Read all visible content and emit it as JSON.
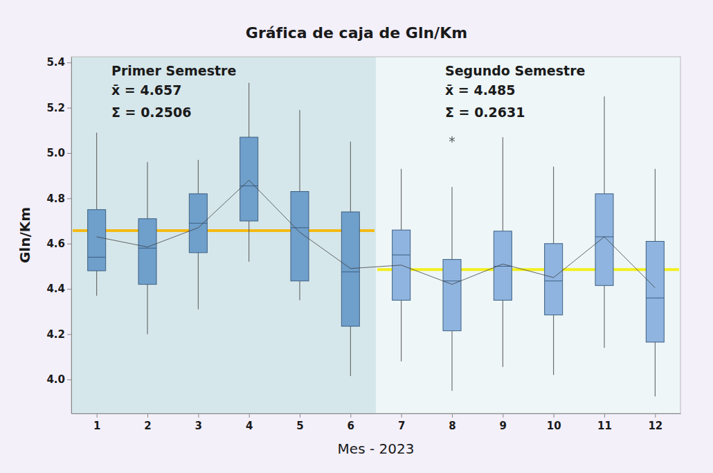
{
  "chart_data": {
    "type": "box",
    "title": "Gráfica de caja de Gln/Km",
    "x_label": "Mes - 2023",
    "y_label": "Gln/Km",
    "categories": [
      "1",
      "2",
      "3",
      "4",
      "5",
      "6",
      "7",
      "8",
      "9",
      "10",
      "11",
      "12"
    ],
    "ylim": [
      3.85,
      5.425
    ],
    "yticks": [
      {
        "value": 4,
        "label": "4.0"
      },
      {
        "value": 4.2,
        "label": "4.2"
      },
      {
        "value": 4.4,
        "label": "4.4"
      },
      {
        "value": 4.6,
        "label": "4.6"
      },
      {
        "value": 4.8,
        "label": "4.8"
      },
      {
        "value": 5,
        "label": "5.0"
      },
      {
        "value": 5.2,
        "label": "5.2"
      },
      {
        "value": 5.4,
        "label": "5.4"
      }
    ],
    "grid": false,
    "series": [
      {
        "color": "#404040",
        "colors": [
          "#6f9fcb",
          "#6f9fcb",
          "#6f9fcb",
          "#6f9fcb",
          "#6f9fcb",
          "#6f9fcb",
          "#8fb4e0",
          "#8fb4e0",
          "#8fb4e0",
          "#8fb4e0",
          "#8fb4e0",
          "#8fb4e0"
        ],
        "min": [
          4.37,
          4.2,
          4.31,
          4.52,
          4.35,
          4.015,
          4.08,
          3.95,
          4.055,
          4.02,
          4.14,
          3.925
        ],
        "q1": [
          4.48,
          4.42,
          4.56,
          4.7,
          4.435,
          4.235,
          4.35,
          4.215,
          4.35,
          4.285,
          4.415,
          4.165
        ],
        "median": [
          4.54,
          4.58,
          4.69,
          4.855,
          4.67,
          4.475,
          4.55,
          4.435,
          4.5,
          4.435,
          4.63,
          4.36
        ],
        "q3": [
          4.75,
          4.71,
          4.82,
          5.07,
          4.83,
          4.74,
          4.66,
          4.53,
          4.655,
          4.6,
          4.82,
          4.61
        ],
        "max": [
          5.09,
          4.96,
          4.97,
          5.31,
          5.19,
          5.05,
          4.93,
          4.85,
          5.07,
          4.94,
          5.25,
          4.93
        ],
        "mean": [
          4.63,
          4.585,
          4.67,
          4.88,
          4.65,
          4.49,
          4.505,
          4.42,
          4.51,
          4.45,
          4.63,
          4.405
        ],
        "outliers": [
          [],
          [],
          [],
          [],
          [],
          [],
          [],
          [
            5.06
          ],
          [],
          [],
          [],
          []
        ]
      }
    ],
    "semesters": [
      {
        "name": "Primer Semestre",
        "from": "1",
        "to": "6",
        "color": "#d6e7eb",
        "mean": {
          "label": "x̄ = 4.657",
          "value": 4.657
        },
        "sigma": "Σ = 0.2506",
        "line_color": "#f5b914"
      },
      {
        "name": "Segundo Semestre",
        "from": "7",
        "to": "12",
        "color": "#eef6f8",
        "mean": {
          "label": "x̄ = 4.485",
          "value": 4.485
        },
        "sigma": "Σ = 0.2631",
        "line_color": "#f2ef1a"
      }
    ]
  }
}
